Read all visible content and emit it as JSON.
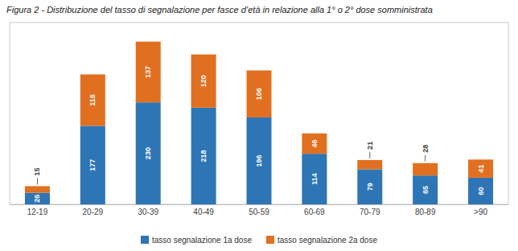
{
  "chart_data": {
    "type": "bar",
    "stacked": true,
    "title": "Figura 2 - Distribuzione del tasso di segnalazione per fasce d’età in relazione alla 1° o 2° dose somministrata",
    "categories": [
      "12-19",
      "20-29",
      "30-39",
      "40-49",
      "50-59",
      "60-69",
      "70-79",
      "80-89",
      ">90"
    ],
    "series": [
      {
        "name": "tasso segnalazione 1a dose",
        "color": "#2E75B6",
        "values": [
          26,
          177,
          230,
          218,
          196,
          114,
          79,
          65,
          60
        ]
      },
      {
        "name": "tasso segnalazione 2a dose",
        "color": "#E07020",
        "values": [
          15,
          116,
          137,
          120,
          106,
          46,
          21,
          28,
          41
        ]
      }
    ],
    "ylim": [
      0,
      410
    ],
    "grid": false,
    "legend": "bottom",
    "data_labels": true,
    "tick_labels": "x"
  }
}
